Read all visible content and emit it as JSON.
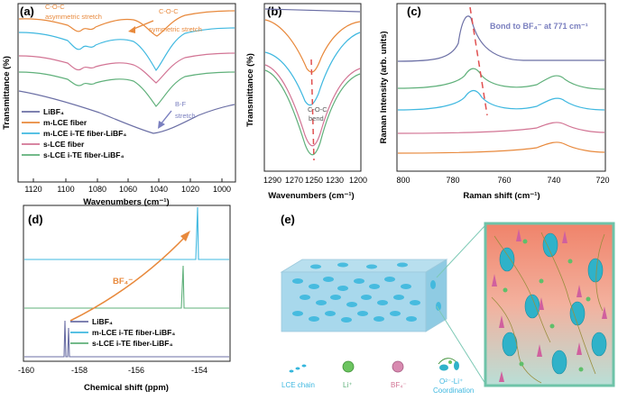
{
  "panels": {
    "a": {
      "label": "(a)",
      "ylabel": "Transmittance (%)",
      "xlabel": "Wavenumbers (cm⁻¹)",
      "xticks": [
        "1120",
        "1100",
        "1080",
        "1060",
        "1040",
        "1020",
        "1000"
      ],
      "annot_coc_asym_1": "C-O-C",
      "annot_coc_asym_2": "asymmetric stretch",
      "annot_coc_sym_1": "C-O-C",
      "annot_coc_sym_2": "symmetric stretch",
      "annot_bf_1": "B-F",
      "annot_bf_2": "stretch",
      "legend": [
        {
          "label": "LiBF₄",
          "color": "#6b6fa5"
        },
        {
          "label": "m-LCE fiber",
          "color": "#e8893c"
        },
        {
          "label": "m-LCE i-TE fiber-LiBF₄",
          "color": "#3fb8e0"
        },
        {
          "label": "s-LCE fiber",
          "color": "#d27494"
        },
        {
          "label": "s-LCE i-TE fiber-LiBF₄",
          "color": "#5fb07a"
        }
      ]
    },
    "b": {
      "label": "(b)",
      "ylabel": "Transmittance (%)",
      "xlabel": "Wavenumbers (cm⁻¹)",
      "xticks": [
        "1290",
        "1270",
        "1250",
        "1230",
        "1200"
      ],
      "annot_1": "C-O-C",
      "annot_2": "bend"
    },
    "c": {
      "label": "(c)",
      "ylabel": "Raman Intensity (arb. units)",
      "xlabel": "Raman shift (cm⁻¹)",
      "xticks": [
        "800",
        "780",
        "760",
        "740",
        "720"
      ],
      "annot": "Bond to BF₄⁻ at 771 cm⁻¹"
    },
    "d": {
      "label": "(d)",
      "xlabel": "Chemical shift (ppm)",
      "xticks": [
        "-160",
        "-158",
        "-156",
        "-154"
      ],
      "annot": "BF₄⁻",
      "legend": [
        {
          "label": "LiBF₄",
          "color": "#6b6fa5"
        },
        {
          "label": "m-LCE i-TE fiber-LiBF₄",
          "color": "#3fb8e0"
        },
        {
          "label": "s-LCE i-TE fiber-LiBF₄",
          "color": "#5fb07a"
        }
      ]
    },
    "e": {
      "label": "(e)",
      "legend": {
        "lce": "LCE chain",
        "li": "Li⁺",
        "bf4": "BF₄⁻",
        "coord_1": "O²⁻-Li⁺",
        "coord_2": "Coordination"
      }
    }
  },
  "colors": {
    "libf4": "#6b6fa5",
    "mlce": "#e8893c",
    "mlce_ite": "#3fb8e0",
    "slce": "#d27494",
    "slce_ite": "#5fb07a",
    "annot_blue": "#7a7fbf",
    "marker_red": "#e05050"
  }
}
